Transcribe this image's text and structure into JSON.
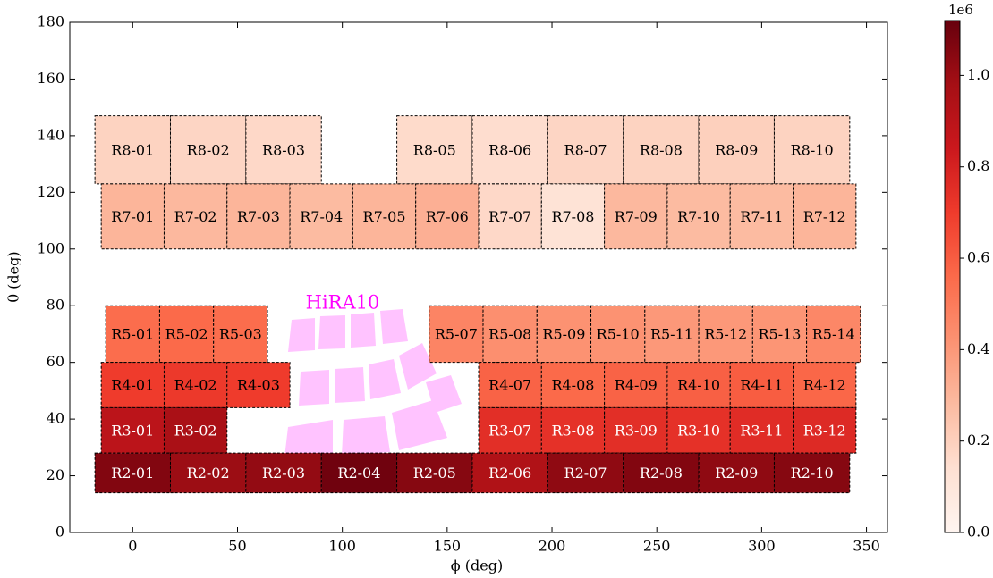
{
  "chart_data": {
    "type": "module-map",
    "xlabel": "ϕ (deg)",
    "ylabel": "θ (deg)",
    "xlim": [
      -30,
      360
    ],
    "xticks": [
      0,
      50,
      100,
      150,
      200,
      250,
      300,
      350
    ],
    "ylim": [
      0,
      180
    ],
    "yticks": [
      0,
      20,
      40,
      60,
      80,
      100,
      120,
      140,
      160,
      180
    ],
    "colorbar": {
      "colormap": "Reds",
      "lim": [
        0,
        1120000
      ],
      "offset_label": "1e6",
      "ticks": [
        {
          "value": 0,
          "label": "0.0"
        },
        {
          "value": 200000,
          "label": "0.2"
        },
        {
          "value": 400000,
          "label": "0.4"
        },
        {
          "value": 600000,
          "label": "0.6"
        },
        {
          "value": 800000,
          "label": "0.8"
        },
        {
          "value": 1000000,
          "label": "1.0"
        }
      ]
    },
    "annotation": {
      "text": "HiRA10",
      "color": "#ff00ff"
    },
    "modules": [
      {
        "label": "R8-01",
        "phi": [
          -18,
          18
        ],
        "theta": [
          123,
          147
        ],
        "value": 190000
      },
      {
        "label": "R8-02",
        "phi": [
          18,
          54
        ],
        "theta": [
          123,
          147
        ],
        "value": 180000
      },
      {
        "label": "R8-03",
        "phi": [
          54,
          90
        ],
        "theta": [
          123,
          147
        ],
        "value": 170000
      },
      {
        "label": "R8-05",
        "phi": [
          126,
          162
        ],
        "theta": [
          123,
          147
        ],
        "value": 160000
      },
      {
        "label": "R8-06",
        "phi": [
          162,
          198
        ],
        "theta": [
          123,
          147
        ],
        "value": 150000
      },
      {
        "label": "R8-07",
        "phi": [
          198,
          234
        ],
        "theta": [
          123,
          147
        ],
        "value": 180000
      },
      {
        "label": "R8-08",
        "phi": [
          234,
          270
        ],
        "theta": [
          123,
          147
        ],
        "value": 190000
      },
      {
        "label": "R8-09",
        "phi": [
          270,
          306
        ],
        "theta": [
          123,
          147
        ],
        "value": 200000
      },
      {
        "label": "R8-10",
        "phi": [
          306,
          342
        ],
        "theta": [
          123,
          147
        ],
        "value": 190000
      },
      {
        "label": "R7-01",
        "phi": [
          -15,
          15
        ],
        "theta": [
          100,
          123
        ],
        "value": 300000
      },
      {
        "label": "R7-02",
        "phi": [
          15,
          45
        ],
        "theta": [
          100,
          123
        ],
        "value": 290000
      },
      {
        "label": "R7-03",
        "phi": [
          45,
          75
        ],
        "theta": [
          100,
          123
        ],
        "value": 300000
      },
      {
        "label": "R7-04",
        "phi": [
          75,
          105
        ],
        "theta": [
          100,
          123
        ],
        "value": 280000
      },
      {
        "label": "R7-05",
        "phi": [
          105,
          135
        ],
        "theta": [
          100,
          123
        ],
        "value": 300000
      },
      {
        "label": "R7-06",
        "phi": [
          135,
          165
        ],
        "theta": [
          100,
          123
        ],
        "value": 320000
      },
      {
        "label": "R7-07",
        "phi": [
          165,
          195
        ],
        "theta": [
          100,
          123
        ],
        "value": 170000
      },
      {
        "label": "R7-08",
        "phi": [
          195,
          225
        ],
        "theta": [
          100,
          123
        ],
        "value": 120000
      },
      {
        "label": "R7-09",
        "phi": [
          225,
          255
        ],
        "theta": [
          100,
          123
        ],
        "value": 290000
      },
      {
        "label": "R7-10",
        "phi": [
          255,
          285
        ],
        "theta": [
          100,
          123
        ],
        "value": 280000
      },
      {
        "label": "R7-11",
        "phi": [
          285,
          315
        ],
        "theta": [
          100,
          123
        ],
        "value": 280000
      },
      {
        "label": "R7-12",
        "phi": [
          315,
          345
        ],
        "theta": [
          100,
          123
        ],
        "value": 300000
      },
      {
        "label": "R5-01",
        "phi": [
          -12.86,
          12.86
        ],
        "theta": [
          60,
          80
        ],
        "value": 550000
      },
      {
        "label": "R5-02",
        "phi": [
          12.86,
          38.57
        ],
        "theta": [
          60,
          80
        ],
        "value": 560000
      },
      {
        "label": "R5-03",
        "phi": [
          38.57,
          64.29
        ],
        "theta": [
          60,
          80
        ],
        "value": 550000
      },
      {
        "label": "R5-07",
        "phi": [
          141.43,
          167.14
        ],
        "theta": [
          60,
          80
        ],
        "value": 470000
      },
      {
        "label": "R5-08",
        "phi": [
          167.14,
          192.86
        ],
        "theta": [
          60,
          80
        ],
        "value": 430000
      },
      {
        "label": "R5-09",
        "phi": [
          192.86,
          218.57
        ],
        "theta": [
          60,
          80
        ],
        "value": 420000
      },
      {
        "label": "R5-10",
        "phi": [
          218.57,
          244.29
        ],
        "theta": [
          60,
          80
        ],
        "value": 420000
      },
      {
        "label": "R5-11",
        "phi": [
          244.29,
          270
        ],
        "theta": [
          60,
          80
        ],
        "value": 400000
      },
      {
        "label": "R5-12",
        "phi": [
          270,
          295.71
        ],
        "theta": [
          60,
          80
        ],
        "value": 400000
      },
      {
        "label": "R5-13",
        "phi": [
          295.71,
          321.43
        ],
        "theta": [
          60,
          80
        ],
        "value": 410000
      },
      {
        "label": "R5-14",
        "phi": [
          321.43,
          347.14
        ],
        "theta": [
          60,
          80
        ],
        "value": 460000
      },
      {
        "label": "R4-01",
        "phi": [
          -15,
          15
        ],
        "theta": [
          44,
          60
        ],
        "value": 700000
      },
      {
        "label": "R4-02",
        "phi": [
          15,
          45
        ],
        "theta": [
          44,
          60
        ],
        "value": 710000
      },
      {
        "label": "R4-03",
        "phi": [
          45,
          75
        ],
        "theta": [
          44,
          60
        ],
        "value": 700000
      },
      {
        "label": "R4-07",
        "phi": [
          165,
          195
        ],
        "theta": [
          44,
          60
        ],
        "value": 580000
      },
      {
        "label": "R4-08",
        "phi": [
          195,
          225
        ],
        "theta": [
          44,
          60
        ],
        "value": 560000
      },
      {
        "label": "R4-09",
        "phi": [
          225,
          255
        ],
        "theta": [
          44,
          60
        ],
        "value": 580000
      },
      {
        "label": "R4-10",
        "phi": [
          255,
          285
        ],
        "theta": [
          44,
          60
        ],
        "value": 590000
      },
      {
        "label": "R4-11",
        "phi": [
          285,
          315
        ],
        "theta": [
          44,
          60
        ],
        "value": 600000
      },
      {
        "label": "R4-12",
        "phi": [
          315,
          345
        ],
        "theta": [
          44,
          60
        ],
        "value": 570000
      },
      {
        "label": "R3-01",
        "phi": [
          -15,
          15
        ],
        "theta": [
          28,
          44
        ],
        "value": 900000
      },
      {
        "label": "R3-02",
        "phi": [
          15,
          45
        ],
        "theta": [
          28,
          44
        ],
        "value": 960000
      },
      {
        "label": "R3-07",
        "phi": [
          165,
          195
        ],
        "theta": [
          28,
          44
        ],
        "value": 750000
      },
      {
        "label": "R3-08",
        "phi": [
          195,
          225
        ],
        "theta": [
          28,
          44
        ],
        "value": 740000
      },
      {
        "label": "R3-09",
        "phi": [
          225,
          255
        ],
        "theta": [
          28,
          44
        ],
        "value": 750000
      },
      {
        "label": "R3-10",
        "phi": [
          255,
          285
        ],
        "theta": [
          28,
          44
        ],
        "value": 740000
      },
      {
        "label": "R3-11",
        "phi": [
          285,
          315
        ],
        "theta": [
          28,
          44
        ],
        "value": 760000
      },
      {
        "label": "R3-12",
        "phi": [
          315,
          345
        ],
        "theta": [
          28,
          44
        ],
        "value": 770000
      },
      {
        "label": "R2-01",
        "phi": [
          -18,
          18
        ],
        "theta": [
          14,
          28
        ],
        "value": 1060000
      },
      {
        "label": "R2-02",
        "phi": [
          18,
          54
        ],
        "theta": [
          14,
          28
        ],
        "value": 1000000
      },
      {
        "label": "R2-03",
        "phi": [
          54,
          90
        ],
        "theta": [
          14,
          28
        ],
        "value": 1020000
      },
      {
        "label": "R2-04",
        "phi": [
          90,
          126
        ],
        "theta": [
          14,
          28
        ],
        "value": 1100000
      },
      {
        "label": "R2-05",
        "phi": [
          126,
          162
        ],
        "theta": [
          14,
          28
        ],
        "value": 1050000
      },
      {
        "label": "R2-06",
        "phi": [
          162,
          198
        ],
        "theta": [
          14,
          28
        ],
        "value": 940000
      },
      {
        "label": "R2-07",
        "phi": [
          198,
          234
        ],
        "theta": [
          14,
          28
        ],
        "value": 1030000
      },
      {
        "label": "R2-08",
        "phi": [
          234,
          270
        ],
        "theta": [
          14,
          28
        ],
        "value": 1060000
      },
      {
        "label": "R2-09",
        "phi": [
          270,
          306
        ],
        "theta": [
          14,
          28
        ],
        "value": 1030000
      },
      {
        "label": "R2-10",
        "phi": [
          306,
          342
        ],
        "theta": [
          14,
          28
        ],
        "value": 1050000
      }
    ]
  }
}
